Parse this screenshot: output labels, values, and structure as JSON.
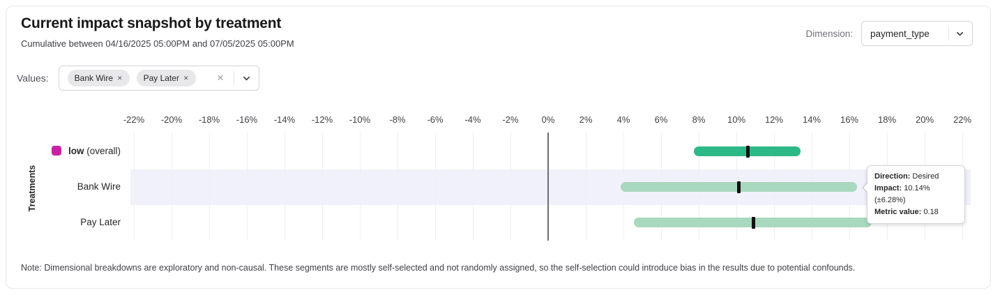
{
  "header": {
    "title": "Current impact snapshot by treatment",
    "subtitle": "Cumulative between 04/16/2025 05:00PM and 07/05/2025 05:00PM",
    "dimension_label": "Dimension:",
    "dimension_value": "payment_type"
  },
  "filters": {
    "values_label": "Values:",
    "chips": [
      {
        "label": "Bank Wire"
      },
      {
        "label": "Pay Later"
      }
    ]
  },
  "icons": {
    "chip_remove": "✕",
    "clear_all": "✕",
    "chevron_down": "chevron-down"
  },
  "chart_data": {
    "type": "interval_bar",
    "title": "Current impact snapshot by treatment",
    "ylabel": "Treatments",
    "x_range": [
      -22,
      22
    ],
    "x_step": 2,
    "x_tick_suffix": "%",
    "x_ticks": [
      -22,
      -20,
      -18,
      -16,
      -14,
      -12,
      -10,
      -8,
      -6,
      -4,
      -2,
      0,
      2,
      4,
      6,
      8,
      10,
      12,
      14,
      16,
      18,
      20,
      22
    ],
    "grid": true,
    "colors": {
      "overall_bar": "#2cb987",
      "segment_bar": "#a8d8bd",
      "overall_legend": "#ca21a2",
      "impact_marker": "#101014",
      "highlight_band": "#f1f1fb"
    },
    "rows": [
      {
        "name": "low",
        "suffix": " (overall)",
        "bold_name": true,
        "legend_color": "#ca21a2",
        "bar_color": "#2cb987",
        "ci_low": 7.75,
        "ci_high": 13.4,
        "impact": 10.6,
        "highlighted": false
      },
      {
        "name": "Bank Wire",
        "suffix": "",
        "bold_name": false,
        "legend_color": null,
        "bar_color": "#a8d8bd",
        "ci_low": 3.86,
        "ci_high": 16.42,
        "impact": 10.14,
        "highlighted": true
      },
      {
        "name": "Pay Later",
        "suffix": "",
        "bold_name": false,
        "legend_color": null,
        "bar_color": "#a8d8bd",
        "ci_low": 4.55,
        "ci_high": 17.2,
        "impact": 10.9,
        "highlighted": false
      }
    ]
  },
  "tooltip": {
    "direction_label": "Direction:",
    "direction_value": "Desired",
    "impact_label": "Impact:",
    "impact_value": "10.14% (±6.28%)",
    "metric_label": "Metric value:",
    "metric_value": "0.18"
  },
  "note": "Note: Dimensional breakdowns are exploratory and non-causal. These segments are mostly self-selected and not randomly assigned, so the self-selection could introduce bias in the results due to potential confounds."
}
